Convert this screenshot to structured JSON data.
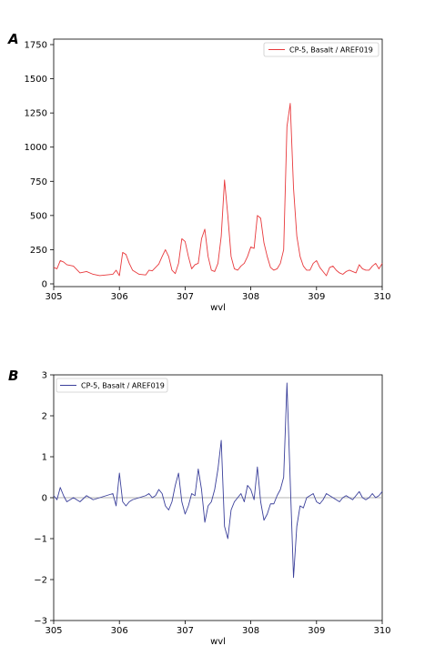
{
  "chart_data": [
    {
      "panel": "A",
      "type": "line",
      "xlabel": "wvl",
      "ylabel": "",
      "xlim": [
        305,
        310
      ],
      "ylim": [
        -20,
        1790
      ],
      "xticks": [
        305,
        306,
        307,
        308,
        309,
        310
      ],
      "xtick_labels": [
        "305",
        "306",
        "307",
        "308",
        "309",
        "310"
      ],
      "yticks": [
        0,
        250,
        500,
        750,
        1000,
        1250,
        1500,
        1750
      ],
      "ytick_labels": [
        "0",
        "250",
        "500",
        "750",
        "1000",
        "1250",
        "1500",
        "1750"
      ],
      "grid": false,
      "legend": "top-right",
      "series": [
        {
          "name": "CP-5, Basalt / AREF019",
          "color": "#e8393c",
          "x": [
            305.0,
            305.05,
            305.1,
            305.15,
            305.2,
            305.3,
            305.4,
            305.5,
            305.6,
            305.7,
            305.8,
            305.9,
            305.95,
            306.0,
            306.05,
            306.1,
            306.15,
            306.2,
            306.3,
            306.4,
            306.45,
            306.5,
            306.55,
            306.6,
            306.65,
            306.7,
            306.75,
            306.8,
            306.85,
            306.9,
            306.95,
            307.0,
            307.05,
            307.1,
            307.15,
            307.2,
            307.25,
            307.3,
            307.35,
            307.4,
            307.45,
            307.5,
            307.55,
            307.6,
            307.65,
            307.7,
            307.75,
            307.8,
            307.85,
            307.9,
            307.95,
            308.0,
            308.05,
            308.1,
            308.15,
            308.2,
            308.25,
            308.3,
            308.35,
            308.4,
            308.45,
            308.5,
            308.55,
            308.6,
            308.65,
            308.7,
            308.75,
            308.8,
            308.85,
            308.9,
            308.95,
            309.0,
            309.05,
            309.1,
            309.15,
            309.2,
            309.25,
            309.3,
            309.35,
            309.4,
            309.45,
            309.5,
            309.55,
            309.6,
            309.65,
            309.7,
            309.75,
            309.8,
            309.85,
            309.9,
            309.95,
            310.0
          ],
          "y": [
            120,
            110,
            170,
            160,
            140,
            130,
            80,
            90,
            70,
            60,
            65,
            70,
            100,
            60,
            230,
            215,
            150,
            100,
            70,
            65,
            100,
            95,
            120,
            145,
            200,
            250,
            200,
            100,
            75,
            150,
            330,
            310,
            200,
            110,
            140,
            150,
            330,
            400,
            200,
            100,
            90,
            150,
            350,
            760,
            500,
            200,
            110,
            100,
            130,
            150,
            200,
            270,
            260,
            500,
            480,
            300,
            200,
            120,
            100,
            110,
            150,
            250,
            1150,
            1320,
            700,
            350,
            200,
            130,
            100,
            100,
            150,
            170,
            120,
            90,
            60,
            120,
            130,
            100,
            80,
            70,
            90,
            100,
            90,
            80,
            140,
            110,
            100,
            100,
            130,
            150,
            110,
            150
          ]
        }
      ]
    },
    {
      "panel": "B",
      "type": "line",
      "xlabel": "wvl",
      "ylabel": "",
      "xlim": [
        305,
        310
      ],
      "ylim": [
        -3,
        3
      ],
      "xticks": [
        305,
        306,
        307,
        308,
        309,
        310
      ],
      "xtick_labels": [
        "305",
        "306",
        "307",
        "308",
        "309",
        "310"
      ],
      "yticks": [
        -3,
        -2,
        -1,
        0,
        1,
        2,
        3
      ],
      "ytick_labels": [
        "−3",
        "−2",
        "−1",
        "0",
        "1",
        "2",
        "3"
      ],
      "grid": false,
      "legend": "top-left",
      "zero_line": true,
      "series": [
        {
          "name": "CP-5, Basalt / AREF019",
          "color": "#3a3f9a",
          "x": [
            305.0,
            305.05,
            305.1,
            305.15,
            305.2,
            305.3,
            305.4,
            305.5,
            305.6,
            305.7,
            305.8,
            305.9,
            305.95,
            306.0,
            306.05,
            306.1,
            306.15,
            306.2,
            306.3,
            306.4,
            306.45,
            306.5,
            306.55,
            306.6,
            306.65,
            306.7,
            306.75,
            306.8,
            306.85,
            306.9,
            306.95,
            307.0,
            307.05,
            307.1,
            307.15,
            307.2,
            307.25,
            307.3,
            307.35,
            307.4,
            307.45,
            307.5,
            307.55,
            307.6,
            307.65,
            307.7,
            307.75,
            307.8,
            307.85,
            307.9,
            307.95,
            308.0,
            308.05,
            308.1,
            308.15,
            308.2,
            308.25,
            308.3,
            308.35,
            308.4,
            308.45,
            308.5,
            308.55,
            308.6,
            308.65,
            308.7,
            308.75,
            308.8,
            308.85,
            308.9,
            308.95,
            309.0,
            309.05,
            309.1,
            309.15,
            309.2,
            309.25,
            309.3,
            309.35,
            309.4,
            309.45,
            309.5,
            309.55,
            309.6,
            309.65,
            309.7,
            309.75,
            309.8,
            309.85,
            309.9,
            309.95,
            310.0
          ],
          "y": [
            0.05,
            -0.05,
            0.25,
            0.05,
            -0.1,
            0.0,
            -0.1,
            0.05,
            -0.05,
            0.0,
            0.05,
            0.1,
            -0.2,
            0.6,
            -0.1,
            -0.2,
            -0.1,
            -0.05,
            0.0,
            0.05,
            0.1,
            0.0,
            0.05,
            0.2,
            0.1,
            -0.2,
            -0.3,
            -0.1,
            0.3,
            0.6,
            -0.1,
            -0.4,
            -0.2,
            0.1,
            0.05,
            0.7,
            0.2,
            -0.6,
            -0.2,
            -0.1,
            0.2,
            0.7,
            1.4,
            -0.7,
            -1.0,
            -0.3,
            -0.1,
            0.0,
            0.1,
            -0.1,
            0.3,
            0.2,
            -0.05,
            0.75,
            -0.1,
            -0.55,
            -0.4,
            -0.15,
            -0.15,
            0.05,
            0.2,
            0.5,
            2.8,
            0.4,
            -1.95,
            -0.7,
            -0.2,
            -0.25,
            0.0,
            0.05,
            0.1,
            -0.1,
            -0.15,
            -0.05,
            0.1,
            0.05,
            0.0,
            -0.05,
            -0.1,
            0.0,
            0.05,
            0.0,
            -0.05,
            0.05,
            0.15,
            0.0,
            -0.05,
            0.0,
            0.1,
            0.0,
            0.05,
            0.15
          ]
        }
      ]
    }
  ]
}
